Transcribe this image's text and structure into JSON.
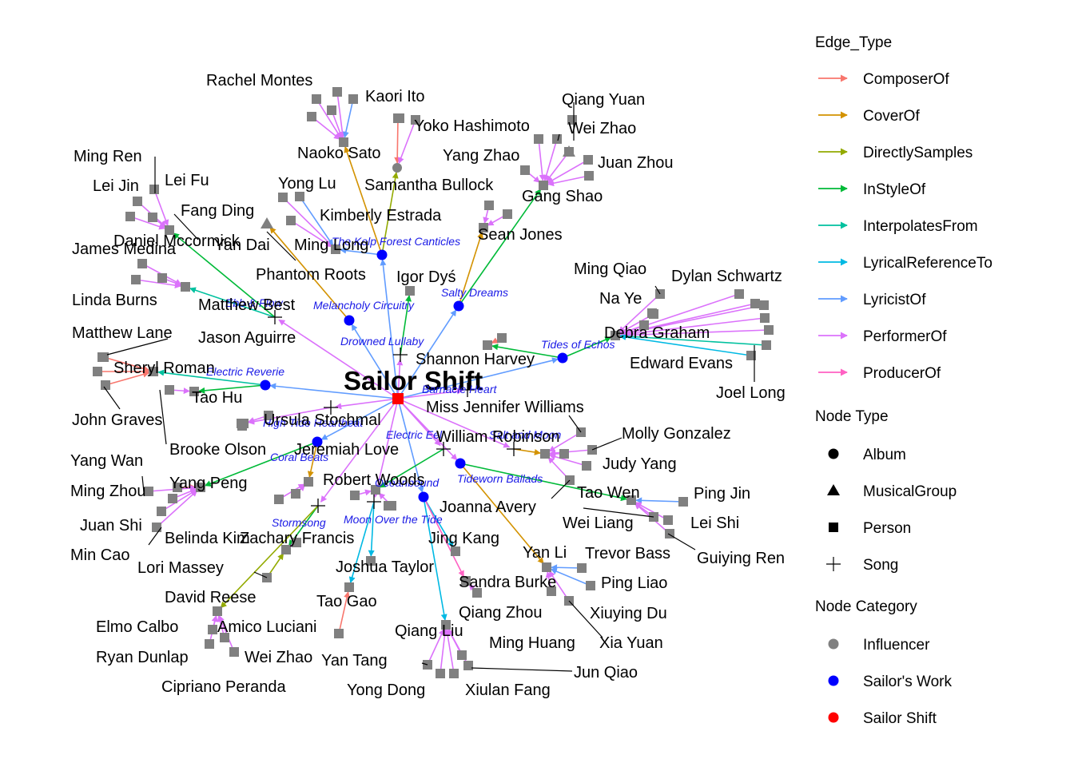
{
  "center": {
    "label": "Sailor Shift",
    "color": "#ff0000"
  },
  "works": [
    {
      "id": "w1",
      "label": "The Kelp Forest Canticles",
      "kind": "Album"
    },
    {
      "id": "w2",
      "label": "Melancholy Circuitry",
      "kind": "Album"
    },
    {
      "id": "w3",
      "label": "Salty Dreams",
      "kind": "Album"
    },
    {
      "id": "w4",
      "label": "Drowned Lullaby",
      "kind": "Song"
    },
    {
      "id": "w5",
      "label": "Tides of Echos",
      "kind": "Album"
    },
    {
      "id": "w6",
      "label": "Electric Reverie",
      "kind": "Album"
    },
    {
      "id": "w7",
      "label": "Barnacle Heart",
      "kind": "Song"
    },
    {
      "id": "w8",
      "label": "High Tide Heartbeat",
      "kind": "Song"
    },
    {
      "id": "w9",
      "label": "Coral Beats",
      "kind": "Album"
    },
    {
      "id": "w10",
      "label": "Electric Eel",
      "kind": "Song"
    },
    {
      "id": "w11",
      "label": "Salt and Moon",
      "kind": "Song"
    },
    {
      "id": "w12",
      "label": "Oceanbound",
      "kind": "Album"
    },
    {
      "id": "w13",
      "label": "Tideworn Ballads",
      "kind": "Album"
    },
    {
      "id": "w14",
      "label": "Stormsong",
      "kind": "Song"
    },
    {
      "id": "w15",
      "label": "Moon Over the Tide",
      "kind": "Song"
    },
    {
      "id": "w16",
      "label": "Ebb & Flow",
      "kind": "Song"
    }
  ],
  "people": [
    "Rachel Montes",
    "Kaori Ito",
    "Naoko Sato",
    "Yoko Hashimoto",
    "Samantha Bullock",
    "Qiang Yuan",
    "Wei Zhao",
    "Yang Zhao",
    "Juan Zhou",
    "Gang Shao",
    "Ming Ren",
    "Lei Jin",
    "Lei Fu",
    "Fang Ding",
    "Yong Lu",
    "Kimberly Estrada",
    "Daniel Mccormick",
    "James Medina",
    "Yan Dai",
    "Ming Long",
    "Phantom Roots",
    "Sean Jones",
    "Igor Dyś",
    "Ming Qiao",
    "Dylan Schwartz",
    "Na Ye",
    "Linda Burns",
    "Matthew Best",
    "Debra Graham",
    "Matthew Lane",
    "Jason Aguirre",
    "Shannon Harvey",
    "Edward Evans",
    "Sheryl Roman",
    "Joel Long",
    "Tao Hu",
    "John Graves",
    "Miss Jennifer Williams",
    "Ursula Stochmal",
    "Brooke Olson",
    "Jeremiah Love",
    "William Robinson",
    "Molly Gonzalez",
    "Yang Wan",
    "Judy Yang",
    "Yang Peng",
    "Robert Woods",
    "Ming Zhou",
    "Tao Wen",
    "Ping Jin",
    "Joanna Avery",
    "Juan Shi",
    "Wei Liang",
    "Lei Shi",
    "Belinda Kim",
    "Zachary Francis",
    "Jing Kang",
    "Min Cao",
    "Yan Li",
    "Trevor Bass",
    "Guiying Ren",
    "Lori Massey",
    "Joshua Taylor",
    "Sandra Burke",
    "Ping Liao",
    "David Reese",
    "Tao Gao",
    "Xiuying Du",
    "Qiang Zhou",
    "Elmo Calbo",
    "Amico Luciani",
    "Qiang Liu",
    "Ming Huang",
    "Xia Yuan",
    "Ryan Dunlap",
    "Wei Zhao",
    "Yan Tang",
    "Jun Qiao",
    "Cipriano Peranda",
    "Yong Dong",
    "Xiulan Fang"
  ],
  "legend": {
    "edge_title": "Edge_Type",
    "edge_types": [
      {
        "label": "ComposerOf",
        "color": "#f8766d"
      },
      {
        "label": "CoverOf",
        "color": "#d39200"
      },
      {
        "label": "DirectlySamples",
        "color": "#93aa00"
      },
      {
        "label": "InStyleOf",
        "color": "#00ba38"
      },
      {
        "label": "InterpolatesFrom",
        "color": "#00c19f"
      },
      {
        "label": "LyricalReferenceTo",
        "color": "#00b9e3"
      },
      {
        "label": "LyricistOf",
        "color": "#619cff"
      },
      {
        "label": "PerformerOf",
        "color": "#db72fb"
      },
      {
        "label": "ProducerOf",
        "color": "#ff61c3"
      }
    ],
    "node_type_title": "Node Type",
    "node_types": [
      {
        "label": "Album",
        "shape": "circle"
      },
      {
        "label": "MusicalGroup",
        "shape": "triangle"
      },
      {
        "label": "Person",
        "shape": "square"
      },
      {
        "label": "Song",
        "shape": "cross"
      }
    ],
    "category_title": "Node Category",
    "categories": [
      {
        "label": "Influencer",
        "color": "#808080"
      },
      {
        "label": "Sailor's Work",
        "color": "#0000ff"
      },
      {
        "label": "Sailor Shift",
        "color": "#ff0000"
      }
    ]
  }
}
